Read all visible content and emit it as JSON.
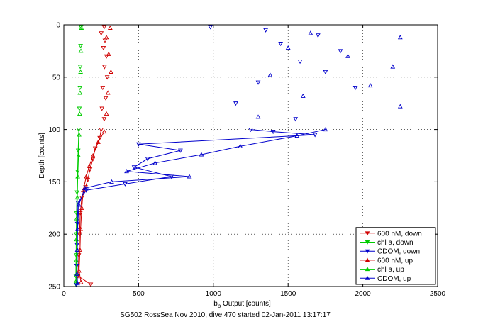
{
  "chart_data": {
    "type": "scatter",
    "title": "",
    "caption": "SG502 RossSea Nov 2010, dive 470 started 02-Jan-2011 13:17:17",
    "xlabel_main": "b",
    "xlabel_sub": "b",
    "xlabel_rest": " Output [counts]",
    "ylabel": "Depth [counts]",
    "xlim": [
      0,
      2500
    ],
    "ylim": [
      250,
      0
    ],
    "y_reversed": true,
    "x_ticks": [
      "0",
      "500",
      "1000",
      "1500",
      "2000",
      "2500"
    ],
    "y_ticks": [
      "0",
      "50",
      "100",
      "150",
      "200",
      "250"
    ],
    "grid": true,
    "grid_style": "dotted",
    "legend_position": "bottom-right",
    "series": [
      {
        "name": "600 nM, down",
        "color": "#d00000",
        "marker": "triangle-down",
        "points": [
          [
            270,
            2
          ],
          [
            250,
            8
          ],
          [
            275,
            15
          ],
          [
            265,
            22
          ],
          [
            285,
            30
          ],
          [
            272,
            40
          ],
          [
            290,
            50
          ],
          [
            260,
            60
          ],
          [
            280,
            70
          ],
          [
            255,
            80
          ],
          [
            270,
            90
          ],
          [
            250,
            100
          ],
          [
            240,
            108
          ],
          [
            210,
            118
          ],
          [
            195,
            128
          ],
          [
            175,
            138
          ],
          [
            160,
            148
          ],
          [
            145,
            155
          ],
          [
            120,
            165
          ],
          [
            110,
            180
          ],
          [
            105,
            200
          ],
          [
            100,
            220
          ],
          [
            95,
            240
          ],
          [
            180,
            248
          ]
        ]
      },
      {
        "name": "chl a, down",
        "color": "#00cc00",
        "marker": "triangle-down",
        "points": [
          [
            115,
            2
          ],
          [
            112,
            20
          ],
          [
            110,
            40
          ],
          [
            108,
            60
          ],
          [
            104,
            80
          ],
          [
            100,
            100
          ],
          [
            96,
            120
          ],
          [
            92,
            140
          ],
          [
            88,
            160
          ],
          [
            85,
            180
          ],
          [
            83,
            200
          ],
          [
            82,
            220
          ],
          [
            80,
            240
          ],
          [
            82,
            248
          ]
        ]
      },
      {
        "name": "CDOM, down",
        "color": "#0000cc",
        "marker": "triangle-down",
        "points": [
          [
            980,
            2
          ],
          [
            1350,
            5
          ],
          [
            1700,
            10
          ],
          [
            1450,
            18
          ],
          [
            1850,
            25
          ],
          [
            1580,
            35
          ],
          [
            1750,
            45
          ],
          [
            1300,
            55
          ],
          [
            1950,
            60
          ],
          [
            1150,
            75
          ],
          [
            1550,
            90
          ],
          [
            1250,
            100
          ],
          [
            1400,
            102
          ],
          [
            1680,
            105
          ],
          [
            500,
            114
          ],
          [
            780,
            120
          ],
          [
            560,
            128
          ],
          [
            470,
            136
          ],
          [
            720,
            145
          ],
          [
            410,
            152
          ],
          [
            150,
            158
          ],
          [
            95,
            170
          ],
          [
            90,
            190
          ],
          [
            88,
            210
          ],
          [
            86,
            230
          ],
          [
            84,
            248
          ]
        ]
      },
      {
        "name": "600 nM, up",
        "color": "#d00000",
        "marker": "triangle-up",
        "points": [
          [
            310,
            3
          ],
          [
            285,
            12
          ],
          [
            300,
            28
          ],
          [
            315,
            45
          ],
          [
            295,
            65
          ],
          [
            285,
            85
          ],
          [
            270,
            102
          ],
          [
            230,
            112
          ],
          [
            195,
            125
          ],
          [
            170,
            135
          ],
          [
            150,
            145
          ],
          [
            130,
            158
          ],
          [
            120,
            175
          ],
          [
            112,
            195
          ],
          [
            108,
            215
          ],
          [
            102,
            235
          ],
          [
            115,
            246
          ]
        ]
      },
      {
        "name": "chl a, up",
        "color": "#00cc00",
        "marker": "triangle-up",
        "points": [
          [
            118,
            3
          ],
          [
            114,
            25
          ],
          [
            112,
            45
          ],
          [
            108,
            65
          ],
          [
            106,
            85
          ],
          [
            102,
            105
          ],
          [
            98,
            125
          ],
          [
            93,
            145
          ],
          [
            90,
            165
          ],
          [
            86,
            185
          ],
          [
            84,
            205
          ],
          [
            83,
            225
          ],
          [
            81,
            245
          ]
        ]
      },
      {
        "name": "CDOM, up",
        "color": "#0000cc",
        "marker": "triangle-up",
        "points": [
          [
            1650,
            8
          ],
          [
            2250,
            12
          ],
          [
            1500,
            22
          ],
          [
            1900,
            30
          ],
          [
            2200,
            40
          ],
          [
            1380,
            48
          ],
          [
            2050,
            58
          ],
          [
            1600,
            68
          ],
          [
            2250,
            78
          ],
          [
            1300,
            88
          ],
          [
            1750,
            100
          ],
          [
            1560,
            106
          ],
          [
            1180,
            116
          ],
          [
            920,
            124
          ],
          [
            610,
            132
          ],
          [
            420,
            140
          ],
          [
            840,
            145
          ],
          [
            320,
            150
          ],
          [
            140,
            156
          ],
          [
            100,
            172
          ],
          [
            92,
            195
          ],
          [
            90,
            215
          ],
          [
            88,
            238
          ],
          [
            92,
            247
          ]
        ]
      }
    ]
  }
}
